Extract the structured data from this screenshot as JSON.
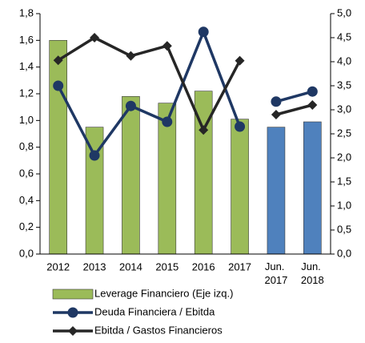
{
  "chart_data": {
    "type": "bar-line",
    "categories": [
      "2012",
      "2013",
      "2014",
      "2015",
      "2016",
      "2017",
      "Jun. 2017",
      "Jun. 2018"
    ],
    "series": [
      {
        "name": "Leverage Financiero (Eje izq.)",
        "type": "bar",
        "axis": "y",
        "colors": [
          "#9bbb59",
          "#9bbb59",
          "#9bbb59",
          "#9bbb59",
          "#9bbb59",
          "#9bbb59",
          "#4f81bd",
          "#4f81bd"
        ],
        "values": [
          1.6,
          0.95,
          1.18,
          1.13,
          1.22,
          1.01,
          0.95,
          0.99
        ]
      },
      {
        "name": "Deuda Financiera / Ebitda",
        "type": "line",
        "axis": "y2",
        "color": "#1f3864",
        "marker": "circle",
        "values": [
          3.5,
          2.05,
          3.08,
          2.75,
          4.62,
          2.65,
          3.17,
          3.38
        ]
      },
      {
        "name": "Ebitda / Gastos Financieros",
        "type": "line",
        "axis": "y2",
        "color": "#262626",
        "marker": "diamond",
        "values": [
          4.03,
          4.5,
          4.12,
          4.33,
          2.58,
          4.02,
          2.9,
          3.1
        ]
      }
    ],
    "ylim": [
      0,
      1.8
    ],
    "yticks": [
      {
        "value": 0,
        "label": "0,0"
      },
      {
        "value": 0.2,
        "label": "0,2"
      },
      {
        "value": 0.4,
        "label": "0,4"
      },
      {
        "value": 0.6,
        "label": "0,6"
      },
      {
        "value": 0.8,
        "label": "0,8"
      },
      {
        "value": 1.0,
        "label": "1,0"
      },
      {
        "value": 1.2,
        "label": "1,2"
      },
      {
        "value": 1.4,
        "label": "1,4"
      },
      {
        "value": 1.6,
        "label": "1,6"
      },
      {
        "value": 1.8,
        "label": "1,8"
      }
    ],
    "y2lim": [
      0,
      5
    ],
    "y2ticks": [
      {
        "value": 0,
        "label": "0,0"
      },
      {
        "value": 0.5,
        "label": "0,5"
      },
      {
        "value": 1.0,
        "label": "1,0"
      },
      {
        "value": 1.5,
        "label": "1,5"
      },
      {
        "value": 2.0,
        "label": "2,0"
      },
      {
        "value": 2.5,
        "label": "2,5"
      },
      {
        "value": 3.0,
        "label": "3,0"
      },
      {
        "value": 3.5,
        "label": "3,5"
      },
      {
        "value": 4.0,
        "label": "4,0"
      },
      {
        "value": 4.5,
        "label": "4,5"
      },
      {
        "value": 5.0,
        "label": "5,0"
      }
    ],
    "grid": false
  }
}
